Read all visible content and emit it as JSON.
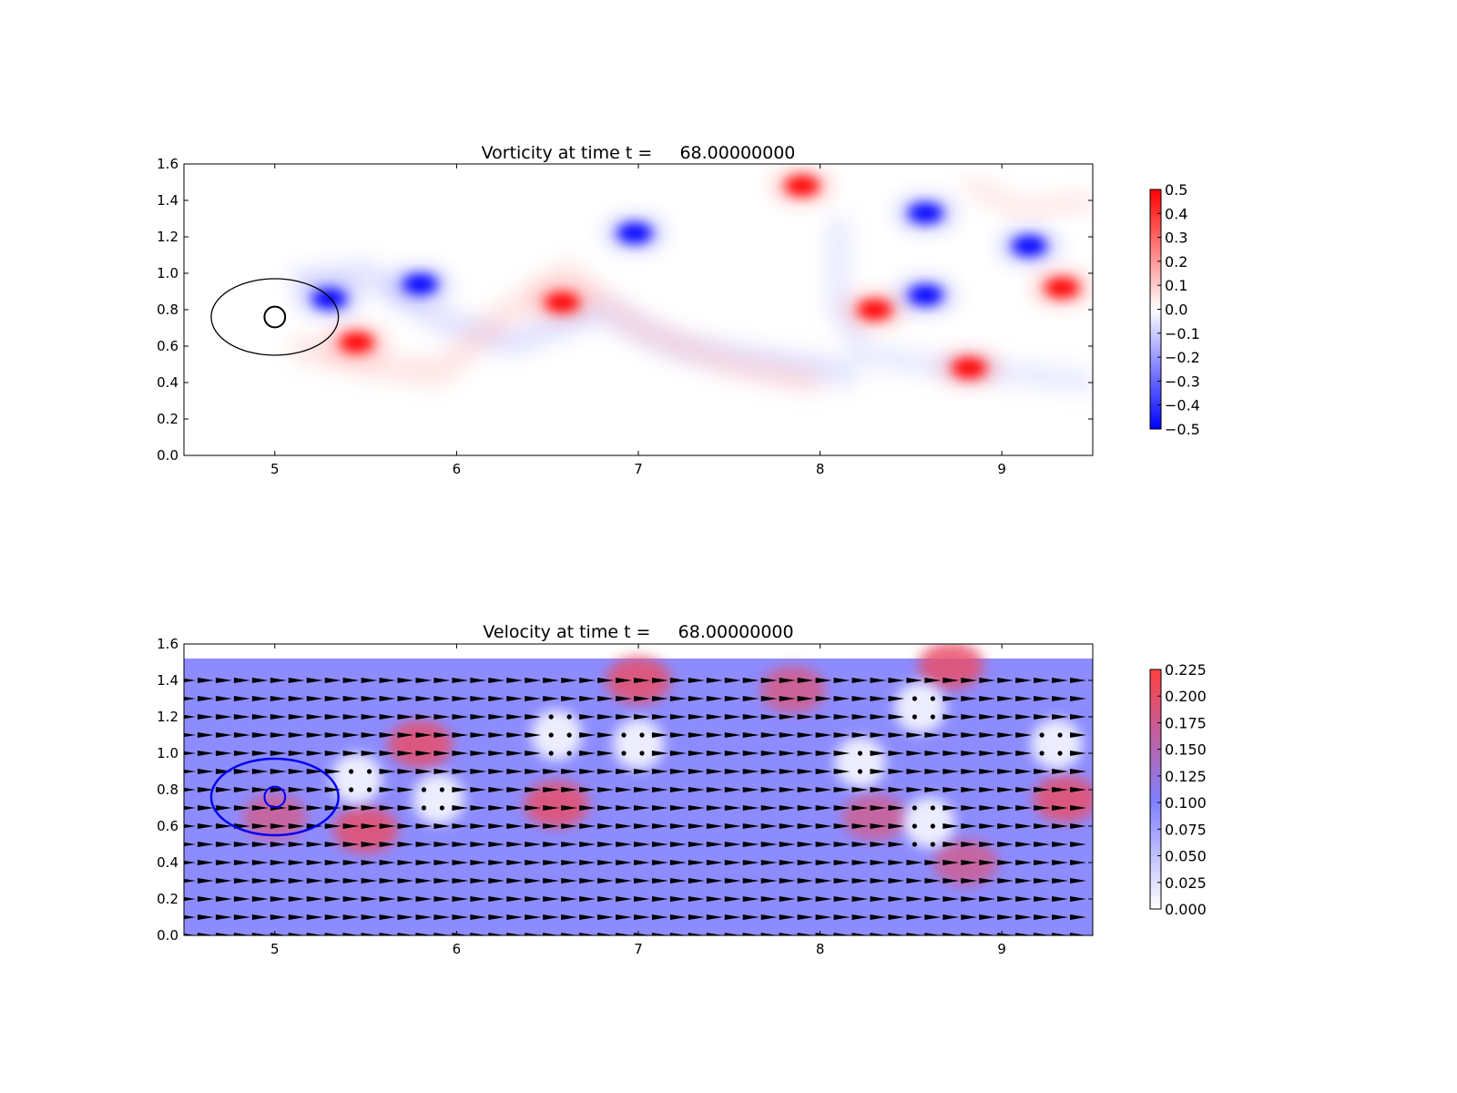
{
  "chart_data": [
    {
      "type": "heatmap",
      "title": "Vorticity at time t =     68.00000000",
      "xlim": [
        4.5,
        9.5
      ],
      "ylim": [
        0.0,
        1.6
      ],
      "xticks": [
        "5",
        "6",
        "7",
        "8",
        "9"
      ],
      "yticks": [
        "0.0",
        "0.2",
        "0.4",
        "0.6",
        "0.8",
        "1.0",
        "1.2",
        "1.4",
        "1.6"
      ],
      "colormap": {
        "low": "#0000ff",
        "mid": "#ffffff",
        "high": "#ff0000"
      },
      "colorbar": {
        "range": [
          -0.5,
          0.5
        ],
        "ticks": [
          "0.5",
          "0.4",
          "0.3",
          "0.2",
          "0.1",
          "0.0",
          "−0.1",
          "−0.2",
          "−0.3",
          "−0.4",
          "−0.5"
        ]
      },
      "cylinder": {
        "center": [
          5.0,
          0.76
        ],
        "radius": 0.06
      },
      "outer_circle": {
        "center": [
          5.0,
          0.76
        ],
        "radius": 0.35
      },
      "vortices": [
        {
          "x": 5.3,
          "y": 0.86,
          "sign": -1,
          "strength": 0.5
        },
        {
          "x": 5.45,
          "y": 0.62,
          "sign": 1,
          "strength": 0.5
        },
        {
          "x": 5.8,
          "y": 0.94,
          "sign": -1,
          "strength": 0.5
        },
        {
          "x": 6.58,
          "y": 0.84,
          "sign": 1,
          "strength": 0.5
        },
        {
          "x": 6.98,
          "y": 1.22,
          "sign": -1,
          "strength": 0.5
        },
        {
          "x": 7.9,
          "y": 1.48,
          "sign": 1,
          "strength": 0.5
        },
        {
          "x": 8.3,
          "y": 0.8,
          "sign": 1,
          "strength": 0.5
        },
        {
          "x": 8.58,
          "y": 0.88,
          "sign": -1,
          "strength": 0.5
        },
        {
          "x": 8.58,
          "y": 1.33,
          "sign": -1,
          "strength": 0.5
        },
        {
          "x": 8.82,
          "y": 0.48,
          "sign": 1,
          "strength": 0.5
        },
        {
          "x": 9.15,
          "y": 1.15,
          "sign": -1,
          "strength": 0.5
        },
        {
          "x": 9.33,
          "y": 0.92,
          "sign": 1,
          "strength": 0.5
        }
      ]
    },
    {
      "type": "heatmap",
      "title": "Velocity at time t =     68.00000000",
      "xlim": [
        4.5,
        9.5
      ],
      "ylim": [
        0.0,
        1.6
      ],
      "xticks": [
        "5",
        "6",
        "7",
        "8",
        "9"
      ],
      "yticks": [
        "0.0",
        "0.2",
        "0.4",
        "0.6",
        "0.8",
        "1.0",
        "1.2",
        "1.4",
        "1.6"
      ],
      "field_ymax": 1.52,
      "colormap": {
        "low": "#ffffff",
        "mid": "#8080ff",
        "high": "#ff4040"
      },
      "colorbar": {
        "range": [
          0.0,
          0.225
        ],
        "ticks": [
          "0.225",
          "0.200",
          "0.175",
          "0.150",
          "0.125",
          "0.100",
          "0.075",
          "0.050",
          "0.025",
          "0.000"
        ]
      },
      "background_speed": 0.1,
      "cylinder": {
        "center": [
          5.0,
          0.76
        ],
        "radius": 0.06
      },
      "outer_circle": {
        "center": [
          5.0,
          0.76
        ],
        "radius": 0.35
      },
      "quiver_spacing": {
        "dx": 0.1,
        "dy": 0.1
      },
      "fast_regions": [
        {
          "x": 5.0,
          "y": 0.65,
          "speed": 0.16
        },
        {
          "x": 5.5,
          "y": 0.58,
          "speed": 0.2
        },
        {
          "x": 5.8,
          "y": 1.05,
          "speed": 0.2
        },
        {
          "x": 6.55,
          "y": 0.72,
          "speed": 0.2
        },
        {
          "x": 7.0,
          "y": 1.4,
          "speed": 0.2
        },
        {
          "x": 7.85,
          "y": 1.35,
          "speed": 0.17
        },
        {
          "x": 8.3,
          "y": 0.65,
          "speed": 0.16
        },
        {
          "x": 8.72,
          "y": 1.48,
          "speed": 0.21
        },
        {
          "x": 8.8,
          "y": 0.4,
          "speed": 0.16
        },
        {
          "x": 9.35,
          "y": 0.75,
          "speed": 0.2
        }
      ],
      "slow_regions": [
        {
          "x": 5.45,
          "y": 0.86
        },
        {
          "x": 5.9,
          "y": 0.75
        },
        {
          "x": 6.55,
          "y": 1.1
        },
        {
          "x": 7.0,
          "y": 1.05
        },
        {
          "x": 8.22,
          "y": 0.95
        },
        {
          "x": 8.6,
          "y": 0.62
        },
        {
          "x": 8.55,
          "y": 1.25
        },
        {
          "x": 9.3,
          "y": 1.05
        }
      ]
    }
  ]
}
